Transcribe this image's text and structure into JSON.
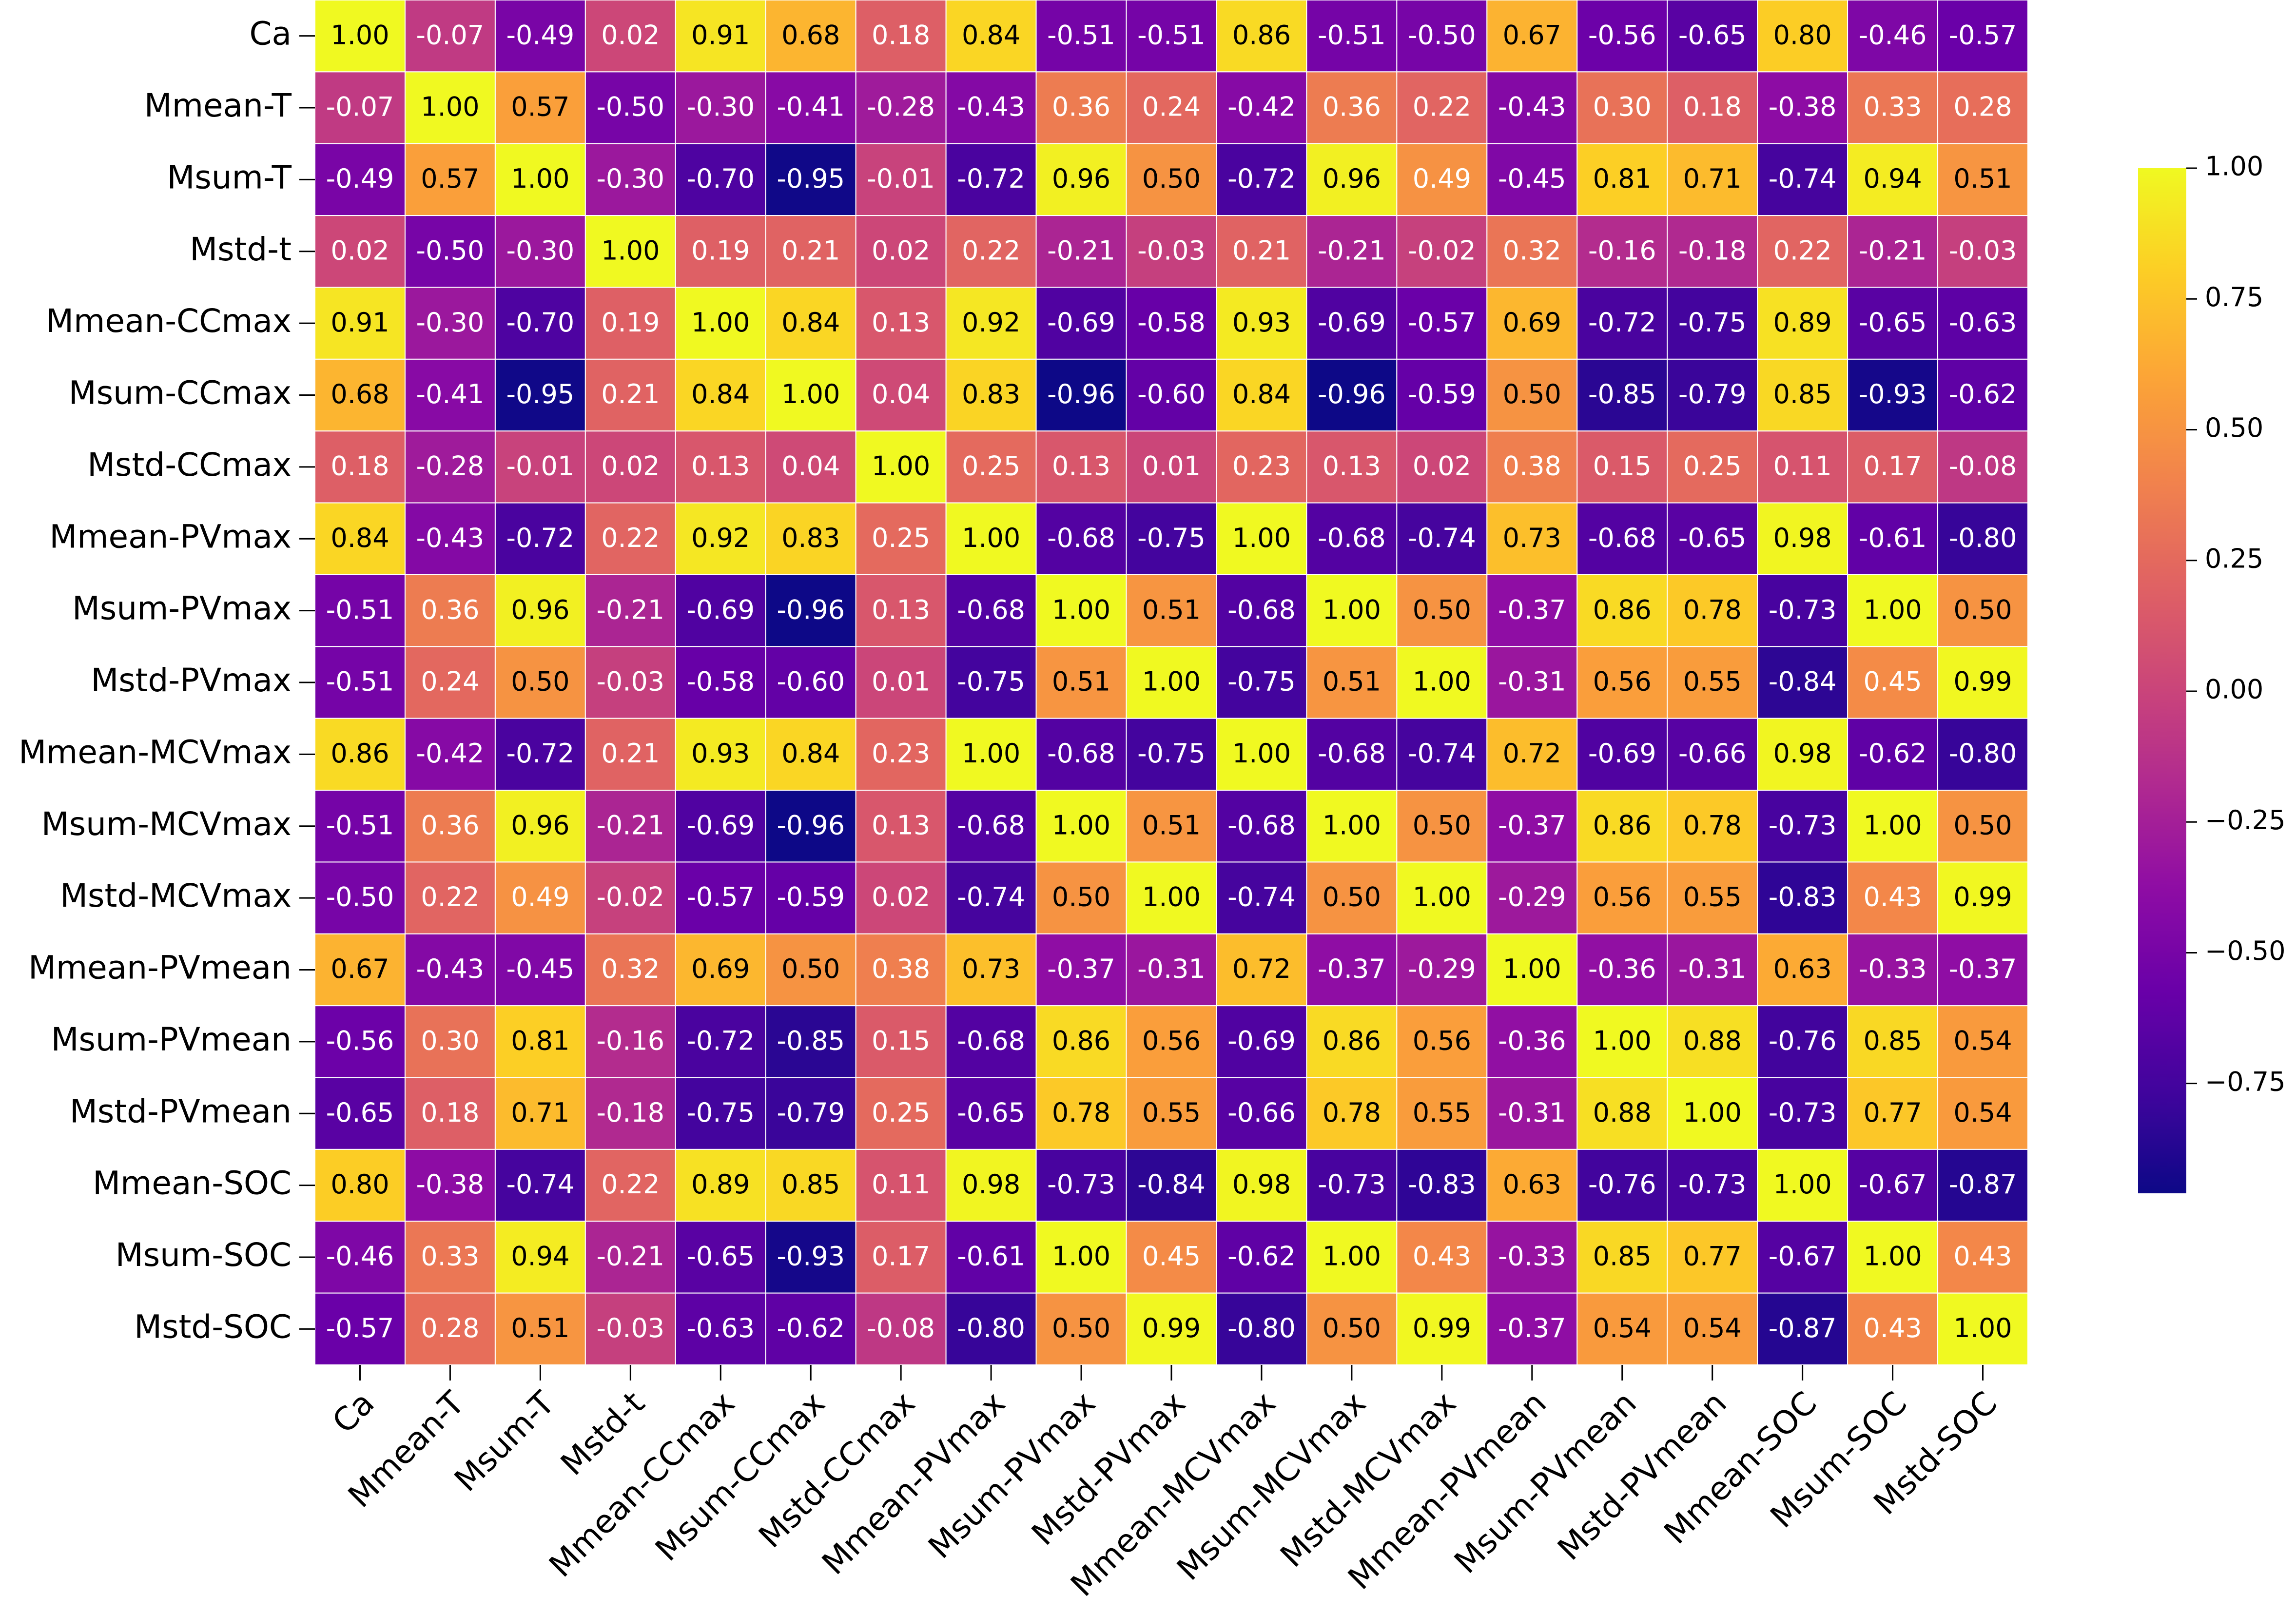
{
  "chart_data": {
    "type": "heatmap",
    "colormap": "plasma",
    "clim": [
      -0.96,
      1
    ],
    "cell_border_color": "#ffffff",
    "rows": [
      "Ca",
      "Mmean-T",
      "Msum-T",
      "Mstd-t",
      "Mmean-CCmax",
      "Msum-CCmax",
      "Mstd-CCmax",
      "Mmean-PVmax",
      "Msum-PVmax",
      "Mstd-PVmax",
      "Mmean-MCVmax",
      "Msum-MCVmax",
      "Mstd-MCVmax",
      "Mmean-PVmean",
      "Msum-PVmean",
      "Mstd-PVmean",
      "Mmean-SOC",
      "Msum-SOC",
      "Mstd-SOC"
    ],
    "columns": [
      "Ca",
      "Mmean-T",
      "Msum-T",
      "Mstd-t",
      "Mmean-CCmax",
      "Msum-CCmax",
      "Mstd-CCmax",
      "Mmean-PVmax",
      "Msum-PVmax",
      "Mstd-PVmax",
      "Mmean-MCVmax",
      "Msum-MCVmax",
      "Mstd-MCVmax",
      "Mmean-PVmean",
      "Msum-PVmean",
      "Mstd-PVmean",
      "Mmean-SOC",
      "Msum-SOC",
      "Mstd-SOC"
    ],
    "values": [
      [
        1,
        -0.07,
        -0.49,
        0.02,
        0.91,
        0.68,
        0.18,
        0.84,
        -0.51,
        -0.51,
        0.86,
        -0.51,
        -0.5,
        0.67,
        -0.56,
        -0.65,
        0.8,
        -0.46,
        -0.57
      ],
      [
        -0.07,
        1,
        0.57,
        -0.5,
        -0.3,
        -0.41,
        -0.28,
        -0.43,
        0.36,
        0.24,
        -0.42,
        0.36,
        0.22,
        -0.43,
        0.3,
        0.18,
        -0.38,
        0.33,
        0.28
      ],
      [
        -0.49,
        0.57,
        1,
        -0.3,
        -0.7,
        -0.95,
        -0.01,
        -0.72,
        0.96,
        0.5,
        -0.72,
        0.96,
        0.49,
        -0.45,
        0.81,
        0.71,
        -0.74,
        0.94,
        0.51
      ],
      [
        0.02,
        -0.5,
        -0.3,
        1,
        0.19,
        0.21,
        0.02,
        0.22,
        -0.21,
        -0.03,
        0.21,
        -0.21,
        -0.02,
        0.32,
        -0.16,
        -0.18,
        0.22,
        -0.21,
        -0.03
      ],
      [
        0.91,
        -0.3,
        -0.7,
        0.19,
        1,
        0.84,
        0.13,
        0.92,
        -0.69,
        -0.58,
        0.93,
        -0.69,
        -0.57,
        0.69,
        -0.72,
        -0.75,
        0.89,
        -0.65,
        -0.63
      ],
      [
        0.68,
        -0.41,
        -0.95,
        0.21,
        0.84,
        1,
        0.04,
        0.83,
        -0.96,
        -0.6,
        0.84,
        -0.96,
        -0.59,
        0.5,
        -0.85,
        -0.79,
        0.85,
        -0.93,
        -0.62
      ],
      [
        0.18,
        -0.28,
        -0.01,
        0.02,
        0.13,
        0.04,
        1,
        0.25,
        0.13,
        0.01,
        0.23,
        0.13,
        0.02,
        0.38,
        0.15,
        0.25,
        0.11,
        0.17,
        -0.08
      ],
      [
        0.84,
        -0.43,
        -0.72,
        0.22,
        0.92,
        0.83,
        0.25,
        1,
        -0.68,
        -0.75,
        1,
        -0.68,
        -0.74,
        0.73,
        -0.68,
        -0.65,
        0.98,
        -0.61,
        -0.8
      ],
      [
        -0.51,
        0.36,
        0.96,
        -0.21,
        -0.69,
        -0.96,
        0.13,
        -0.68,
        1,
        0.51,
        -0.68,
        1,
        0.5,
        -0.37,
        0.86,
        0.78,
        -0.73,
        1,
        0.5
      ],
      [
        -0.51,
        0.24,
        0.5,
        -0.03,
        -0.58,
        -0.6,
        0.01,
        -0.75,
        0.51,
        1,
        -0.75,
        0.51,
        1,
        -0.31,
        0.56,
        0.55,
        -0.84,
        0.45,
        0.99
      ],
      [
        0.86,
        -0.42,
        -0.72,
        0.21,
        0.93,
        0.84,
        0.23,
        1,
        -0.68,
        -0.75,
        1,
        -0.68,
        -0.74,
        0.72,
        -0.69,
        -0.66,
        0.98,
        -0.62,
        -0.8
      ],
      [
        -0.51,
        0.36,
        0.96,
        -0.21,
        -0.69,
        -0.96,
        0.13,
        -0.68,
        1,
        0.51,
        -0.68,
        1,
        0.5,
        -0.37,
        0.86,
        0.78,
        -0.73,
        1,
        0.5
      ],
      [
        -0.5,
        0.22,
        0.49,
        -0.02,
        -0.57,
        -0.59,
        0.02,
        -0.74,
        0.5,
        1,
        -0.74,
        0.5,
        1,
        -0.29,
        0.56,
        0.55,
        -0.83,
        0.43,
        0.99
      ],
      [
        0.67,
        -0.43,
        -0.45,
        0.32,
        0.69,
        0.5,
        0.38,
        0.73,
        -0.37,
        -0.31,
        0.72,
        -0.37,
        -0.29,
        1,
        -0.36,
        -0.31,
        0.63,
        -0.33,
        -0.37
      ],
      [
        -0.56,
        0.3,
        0.81,
        -0.16,
        -0.72,
        -0.85,
        0.15,
        -0.68,
        0.86,
        0.56,
        -0.69,
        0.86,
        0.56,
        -0.36,
        1,
        0.88,
        -0.76,
        0.85,
        0.54
      ],
      [
        -0.65,
        0.18,
        0.71,
        -0.18,
        -0.75,
        -0.79,
        0.25,
        -0.65,
        0.78,
        0.55,
        -0.66,
        0.78,
        0.55,
        -0.31,
        0.88,
        1,
        -0.73,
        0.77,
        0.54
      ],
      [
        0.8,
        -0.38,
        -0.74,
        0.22,
        0.89,
        0.85,
        0.11,
        0.98,
        -0.73,
        -0.84,
        0.98,
        -0.73,
        -0.83,
        0.63,
        -0.76,
        -0.73,
        1,
        -0.67,
        -0.87
      ],
      [
        -0.46,
        0.33,
        0.94,
        -0.21,
        -0.65,
        -0.93,
        0.17,
        -0.61,
        1,
        0.45,
        -0.62,
        1,
        0.43,
        -0.33,
        0.85,
        0.77,
        -0.67,
        1,
        0.43
      ],
      [
        -0.57,
        0.28,
        0.51,
        -0.03,
        -0.63,
        -0.62,
        -0.08,
        -0.8,
        0.5,
        0.99,
        -0.8,
        0.5,
        0.99,
        -0.37,
        0.54,
        0.54,
        -0.87,
        0.43,
        1
      ]
    ],
    "value_labels": [
      [
        "1.00",
        "-0.07",
        "-0.49",
        "0.02",
        "0.91",
        "0.68",
        "0.18",
        "0.84",
        "-0.51",
        "-0.51",
        "0.86",
        "-0.51",
        "-0.50",
        "0.67",
        "-0.56",
        "-0.65",
        "0.80",
        "-0.46",
        "-0.57"
      ],
      [
        "-0.07",
        "1.00",
        "0.57",
        "-0.50",
        "-0.30",
        "-0.41",
        "-0.28",
        "-0.43",
        "0.36",
        "0.24",
        "-0.42",
        "0.36",
        "0.22",
        "-0.43",
        "0.30",
        "0.18",
        "-0.38",
        "0.33",
        "0.28"
      ],
      [
        "-0.49",
        "0.57",
        "1.00",
        "-0.30",
        "-0.70",
        "-0.95",
        "-0.01",
        "-0.72",
        "0.96",
        "0.50",
        "-0.72",
        "0.96",
        "0.49",
        "-0.45",
        "0.81",
        "0.71",
        "-0.74",
        "0.94",
        "0.51"
      ],
      [
        "0.02",
        "-0.50",
        "-0.30",
        "1.00",
        "0.19",
        "0.21",
        "0.02",
        "0.22",
        "-0.21",
        "-0.03",
        "0.21",
        "-0.21",
        "-0.02",
        "0.32",
        "-0.16",
        "-0.18",
        "0.22",
        "-0.21",
        "-0.03"
      ],
      [
        "0.91",
        "-0.30",
        "-0.70",
        "0.19",
        "1.00",
        "0.84",
        "0.13",
        "0.92",
        "-0.69",
        "-0.58",
        "0.93",
        "-0.69",
        "-0.57",
        "0.69",
        "-0.72",
        "-0.75",
        "0.89",
        "-0.65",
        "-0.63"
      ],
      [
        "0.68",
        "-0.41",
        "-0.95",
        "0.21",
        "0.84",
        "1.00",
        "0.04",
        "0.83",
        "-0.96",
        "-0.60",
        "0.84",
        "-0.96",
        "-0.59",
        "0.50",
        "-0.85",
        "-0.79",
        "0.85",
        "-0.93",
        "-0.62"
      ],
      [
        "0.18",
        "-0.28",
        "-0.01",
        "0.02",
        "0.13",
        "0.04",
        "1.00",
        "0.25",
        "0.13",
        "0.01",
        "0.23",
        "0.13",
        "0.02",
        "0.38",
        "0.15",
        "0.25",
        "0.11",
        "0.17",
        "-0.08"
      ],
      [
        "0.84",
        "-0.43",
        "-0.72",
        "0.22",
        "0.92",
        "0.83",
        "0.25",
        "1.00",
        "-0.68",
        "-0.75",
        "1.00",
        "-0.68",
        "-0.74",
        "0.73",
        "-0.68",
        "-0.65",
        "0.98",
        "-0.61",
        "-0.80"
      ],
      [
        "-0.51",
        "0.36",
        "0.96",
        "-0.21",
        "-0.69",
        "-0.96",
        "0.13",
        "-0.68",
        "1.00",
        "0.51",
        "-0.68",
        "1.00",
        "0.50",
        "-0.37",
        "0.86",
        "0.78",
        "-0.73",
        "1.00",
        "0.50"
      ],
      [
        "-0.51",
        "0.24",
        "0.50",
        "-0.03",
        "-0.58",
        "-0.60",
        "0.01",
        "-0.75",
        "0.51",
        "1.00",
        "-0.75",
        "0.51",
        "1.00",
        "-0.31",
        "0.56",
        "0.55",
        "-0.84",
        "0.45",
        "0.99"
      ],
      [
        "0.86",
        "-0.42",
        "-0.72",
        "0.21",
        "0.93",
        "0.84",
        "0.23",
        "1.00",
        "-0.68",
        "-0.75",
        "1.00",
        "-0.68",
        "-0.74",
        "0.72",
        "-0.69",
        "-0.66",
        "0.98",
        "-0.62",
        "-0.80"
      ],
      [
        "-0.51",
        "0.36",
        "0.96",
        "-0.21",
        "-0.69",
        "-0.96",
        "0.13",
        "-0.68",
        "1.00",
        "0.51",
        "-0.68",
        "1.00",
        "0.50",
        "-0.37",
        "0.86",
        "0.78",
        "-0.73",
        "1.00",
        "0.50"
      ],
      [
        "-0.50",
        "0.22",
        "0.49",
        "-0.02",
        "-0.57",
        "-0.59",
        "0.02",
        "-0.74",
        "0.50",
        "1.00",
        "-0.74",
        "0.50",
        "1.00",
        "-0.29",
        "0.56",
        "0.55",
        "-0.83",
        "0.43",
        "0.99"
      ],
      [
        "0.67",
        "-0.43",
        "-0.45",
        "0.32",
        "0.69",
        "0.50",
        "0.38",
        "0.73",
        "-0.37",
        "-0.31",
        "0.72",
        "-0.37",
        "-0.29",
        "1.00",
        "-0.36",
        "-0.31",
        "0.63",
        "-0.33",
        "-0.37"
      ],
      [
        "-0.56",
        "0.30",
        "0.81",
        "-0.16",
        "-0.72",
        "-0.85",
        "0.15",
        "-0.68",
        "0.86",
        "0.56",
        "-0.69",
        "0.86",
        "0.56",
        "-0.36",
        "1.00",
        "0.88",
        "-0.76",
        "0.85",
        "0.54"
      ],
      [
        "-0.65",
        "0.18",
        "0.71",
        "-0.18",
        "-0.75",
        "-0.79",
        "0.25",
        "-0.65",
        "0.78",
        "0.55",
        "-0.66",
        "0.78",
        "0.55",
        "-0.31",
        "0.88",
        "1.00",
        "-0.73",
        "0.77",
        "0.54"
      ],
      [
        "0.80",
        "-0.38",
        "-0.74",
        "0.22",
        "0.89",
        "0.85",
        "0.11",
        "0.98",
        "-0.73",
        "-0.84",
        "0.98",
        "-0.73",
        "-0.83",
        "0.63",
        "-0.76",
        "-0.73",
        "1.00",
        "-0.67",
        "-0.87"
      ],
      [
        "-0.46",
        "0.33",
        "0.94",
        "-0.21",
        "-0.65",
        "-0.93",
        "0.17",
        "-0.61",
        "1.00",
        "0.45",
        "-0.62",
        "1.00",
        "0.43",
        "-0.33",
        "0.85",
        "0.77",
        "-0.67",
        "1.00",
        "0.43"
      ],
      [
        "-0.57",
        "0.28",
        "0.51",
        "-0.03",
        "-0.63",
        "-0.62",
        "-0.08",
        "-0.80",
        "0.50",
        "0.99",
        "-0.80",
        "0.50",
        "0.99",
        "-0.37",
        "0.54",
        "0.54",
        "-0.87",
        "0.43",
        "1.00"
      ]
    ],
    "colorbar_ticks": [
      {
        "value": 1,
        "label": "1.00"
      },
      {
        "value": 0.75,
        "label": "0.75"
      },
      {
        "value": 0.5,
        "label": "0.50"
      },
      {
        "value": 0.25,
        "label": "0.25"
      },
      {
        "value": 0,
        "label": "0.00"
      },
      {
        "value": -0.25,
        "label": "−0.25"
      },
      {
        "value": -0.5,
        "label": "−0.50"
      },
      {
        "value": -0.75,
        "label": "−0.75"
      }
    ]
  }
}
